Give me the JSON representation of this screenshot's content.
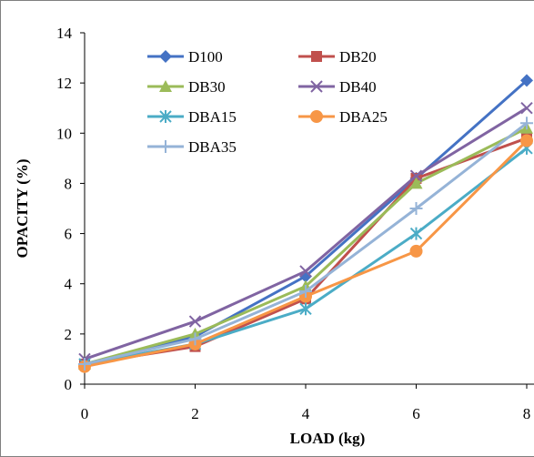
{
  "chart_data": {
    "type": "line",
    "title": "",
    "xlabel": "LOAD (kg)",
    "ylabel": "OPACITY  (%)",
    "x": [
      0,
      2,
      4,
      6,
      8
    ],
    "xlim": [
      0,
      8
    ],
    "ylim": [
      0,
      14
    ],
    "x_ticks": [
      "0",
      "2",
      "4",
      "6",
      "8"
    ],
    "y_ticks": [
      "0",
      "2",
      "4",
      "6",
      "8",
      "10",
      "12",
      "14"
    ],
    "grid": false,
    "legend_position": "top-left",
    "series": [
      {
        "name": "D100",
        "color": "#4472c4",
        "marker": "diamond",
        "values": [
          0.8,
          1.9,
          4.3,
          8.2,
          12.1
        ]
      },
      {
        "name": "DB20",
        "color": "#c0504d",
        "marker": "square",
        "values": [
          0.8,
          1.5,
          3.4,
          8.2,
          9.8
        ]
      },
      {
        "name": "DB30",
        "color": "#9bbb59",
        "marker": "triangle",
        "values": [
          0.8,
          2.0,
          3.9,
          8.0,
          10.2
        ]
      },
      {
        "name": "DB40",
        "color": "#8064a2",
        "marker": "x",
        "values": [
          1.0,
          2.5,
          4.5,
          8.3,
          11.0
        ]
      },
      {
        "name": "DBA15",
        "color": "#4bacc6",
        "marker": "asterisk",
        "values": [
          0.8,
          1.6,
          3.0,
          6.0,
          9.4
        ]
      },
      {
        "name": "DBA25",
        "color": "#f79646",
        "marker": "circle",
        "values": [
          0.7,
          1.6,
          3.5,
          5.3,
          9.7
        ]
      },
      {
        "name": "DBA35",
        "color": "#95b3d7",
        "marker": "plus",
        "values": [
          0.8,
          1.8,
          3.7,
          7.0,
          10.4
        ]
      }
    ]
  }
}
